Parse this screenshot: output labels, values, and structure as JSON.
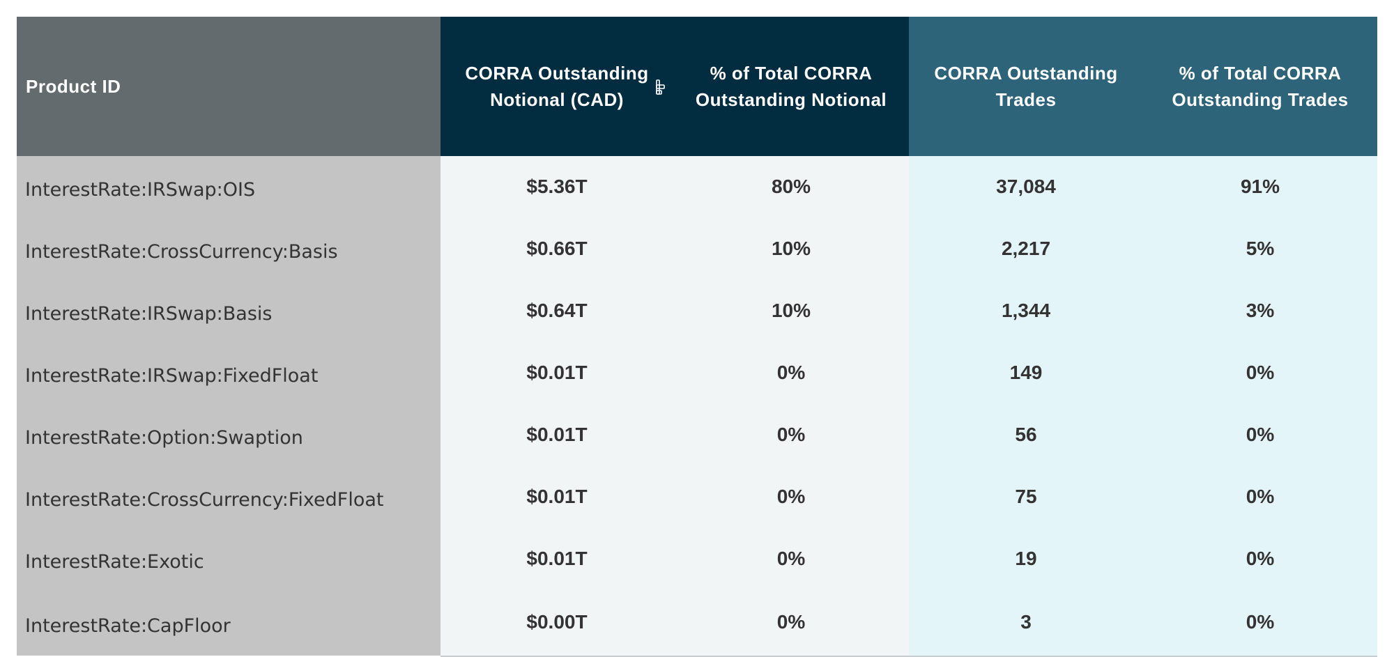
{
  "table": {
    "headers": [
      "Product ID",
      "CORRA Outstanding Notional (CAD)",
      "% of Total CORRA Outstanding Notional",
      "CORRA Outstanding Trades",
      "% of Total CORRA Outstanding Trades"
    ],
    "sort_icon": "sort-descending-icon",
    "colors": {
      "product_header": "#636b6f",
      "notional_header": "#022c40",
      "trades_header": "#2e6479",
      "product_cells": "#c4c4c4",
      "notional_cells": "#f1f5f6",
      "trades_cells": "#e4f5f9"
    },
    "rows": [
      {
        "product": "InterestRate:IRSwap:OIS",
        "notional": "$5.36T",
        "notional_pct": "80%",
        "trades": "37,084",
        "trades_pct": "91%"
      },
      {
        "product": "InterestRate:CrossCurrency:Basis",
        "notional": "$0.66T",
        "notional_pct": "10%",
        "trades": "2,217",
        "trades_pct": "5%"
      },
      {
        "product": "InterestRate:IRSwap:Basis",
        "notional": "$0.64T",
        "notional_pct": "10%",
        "trades": "1,344",
        "trades_pct": "3%"
      },
      {
        "product": "InterestRate:IRSwap:FixedFloat",
        "notional": "$0.01T",
        "notional_pct": "0%",
        "trades": "149",
        "trades_pct": "0%"
      },
      {
        "product": "InterestRate:Option:Swaption",
        "notional": "$0.01T",
        "notional_pct": "0%",
        "trades": "56",
        "trades_pct": "0%"
      },
      {
        "product": "InterestRate:CrossCurrency:FixedFloat",
        "notional": "$0.01T",
        "notional_pct": "0%",
        "trades": "75",
        "trades_pct": "0%"
      },
      {
        "product": "InterestRate:Exotic",
        "notional": "$0.01T",
        "notional_pct": "0%",
        "trades": "19",
        "trades_pct": "0%"
      },
      {
        "product": "InterestRate:CapFloor",
        "notional": "$0.00T",
        "notional_pct": "0%",
        "trades": "3",
        "trades_pct": "0%"
      }
    ]
  }
}
